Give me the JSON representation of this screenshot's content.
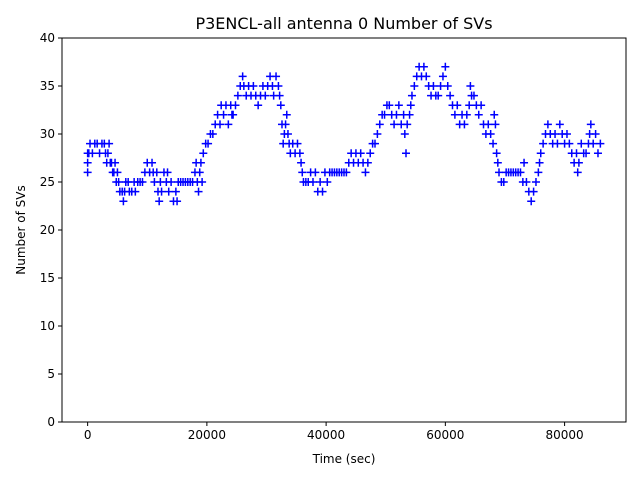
{
  "chart_data": {
    "type": "scatter",
    "title": "P3ENCL-all antenna 0 Number of SVs",
    "xlabel": "Time (sec)",
    "ylabel": "Number of SVs",
    "xlim": [
      -4300,
      90300
    ],
    "ylim": [
      0,
      40
    ],
    "xticks": [
      0,
      20000,
      40000,
      60000,
      80000
    ],
    "yticks": [
      0,
      5,
      10,
      15,
      20,
      25,
      30,
      35,
      40
    ],
    "marker": "+",
    "color": "#0000ff",
    "grid": false,
    "series": [
      {
        "name": "antenna 0",
        "points": [
          [
            0,
            26
          ],
          [
            0,
            27
          ],
          [
            0,
            28
          ],
          [
            200,
            28
          ],
          [
            400,
            29
          ],
          [
            800,
            28
          ],
          [
            1200,
            29
          ],
          [
            1600,
            29
          ],
          [
            2000,
            28
          ],
          [
            2400,
            29
          ],
          [
            2800,
            29
          ],
          [
            3000,
            28
          ],
          [
            3200,
            27
          ],
          [
            3400,
            28
          ],
          [
            3600,
            29
          ],
          [
            3800,
            27
          ],
          [
            4000,
            27
          ],
          [
            4200,
            26
          ],
          [
            4400,
            26
          ],
          [
            4600,
            27
          ],
          [
            4800,
            25
          ],
          [
            5000,
            26
          ],
          [
            5200,
            25
          ],
          [
            5400,
            24
          ],
          [
            5800,
            24
          ],
          [
            6000,
            23
          ],
          [
            6200,
            24
          ],
          [
            6400,
            25
          ],
          [
            6800,
            25
          ],
          [
            7000,
            24
          ],
          [
            7400,
            24
          ],
          [
            7800,
            25
          ],
          [
            8000,
            24
          ],
          [
            8400,
            25
          ],
          [
            8800,
            25
          ],
          [
            9200,
            25
          ],
          [
            9600,
            26
          ],
          [
            10000,
            27
          ],
          [
            10400,
            26
          ],
          [
            10800,
            27
          ],
          [
            11000,
            26
          ],
          [
            11200,
            25
          ],
          [
            11600,
            26
          ],
          [
            11800,
            24
          ],
          [
            12000,
            23
          ],
          [
            12200,
            25
          ],
          [
            12400,
            24
          ],
          [
            12800,
            26
          ],
          [
            13200,
            25
          ],
          [
            13400,
            26
          ],
          [
            13600,
            24
          ],
          [
            14000,
            25
          ],
          [
            14400,
            23
          ],
          [
            14800,
            24
          ],
          [
            15000,
            23
          ],
          [
            15200,
            25
          ],
          [
            15600,
            25
          ],
          [
            16000,
            25
          ],
          [
            16400,
            25
          ],
          [
            16800,
            25
          ],
          [
            17200,
            25
          ],
          [
            17600,
            25
          ],
          [
            18000,
            26
          ],
          [
            18200,
            27
          ],
          [
            18400,
            25
          ],
          [
            18600,
            24
          ],
          [
            18800,
            26
          ],
          [
            19000,
            27
          ],
          [
            19200,
            25
          ],
          [
            19400,
            28
          ],
          [
            19800,
            29
          ],
          [
            20200,
            29
          ],
          [
            20600,
            30
          ],
          [
            21000,
            30
          ],
          [
            21400,
            31
          ],
          [
            21800,
            32
          ],
          [
            22200,
            31
          ],
          [
            22400,
            33
          ],
          [
            22800,
            32
          ],
          [
            23200,
            33
          ],
          [
            23600,
            31
          ],
          [
            24000,
            33
          ],
          [
            24200,
            32
          ],
          [
            24400,
            32
          ],
          [
            24800,
            33
          ],
          [
            25200,
            34
          ],
          [
            25600,
            35
          ],
          [
            26000,
            36
          ],
          [
            26200,
            35
          ],
          [
            26600,
            34
          ],
          [
            27000,
            35
          ],
          [
            27400,
            34
          ],
          [
            27800,
            35
          ],
          [
            28200,
            34
          ],
          [
            28600,
            33
          ],
          [
            29000,
            34
          ],
          [
            29400,
            35
          ],
          [
            29800,
            34
          ],
          [
            30200,
            35
          ],
          [
            30600,
            36
          ],
          [
            31000,
            35
          ],
          [
            31200,
            34
          ],
          [
            31600,
            36
          ],
          [
            32000,
            35
          ],
          [
            32200,
            34
          ],
          [
            32400,
            33
          ],
          [
            32600,
            31
          ],
          [
            32800,
            29
          ],
          [
            33000,
            30
          ],
          [
            33200,
            31
          ],
          [
            33400,
            32
          ],
          [
            33600,
            30
          ],
          [
            33800,
            29
          ],
          [
            34000,
            28
          ],
          [
            34400,
            29
          ],
          [
            34800,
            28
          ],
          [
            35200,
            29
          ],
          [
            35600,
            28
          ],
          [
            35800,
            27
          ],
          [
            36000,
            26
          ],
          [
            36200,
            25
          ],
          [
            36600,
            25
          ],
          [
            37000,
            25
          ],
          [
            37400,
            26
          ],
          [
            37800,
            25
          ],
          [
            38200,
            26
          ],
          [
            38600,
            24
          ],
          [
            39000,
            25
          ],
          [
            39400,
            24
          ],
          [
            39800,
            26
          ],
          [
            40200,
            25
          ],
          [
            40600,
            26
          ],
          [
            41000,
            26
          ],
          [
            41400,
            26
          ],
          [
            41800,
            26
          ],
          [
            42200,
            26
          ],
          [
            42600,
            26
          ],
          [
            43000,
            26
          ],
          [
            43400,
            26
          ],
          [
            43800,
            27
          ],
          [
            44200,
            28
          ],
          [
            44600,
            27
          ],
          [
            45000,
            28
          ],
          [
            45400,
            27
          ],
          [
            45800,
            28
          ],
          [
            46200,
            27
          ],
          [
            46600,
            26
          ],
          [
            47000,
            27
          ],
          [
            47400,
            28
          ],
          [
            47800,
            29
          ],
          [
            48200,
            29
          ],
          [
            48600,
            30
          ],
          [
            49000,
            31
          ],
          [
            49400,
            32
          ],
          [
            49800,
            32
          ],
          [
            50200,
            33
          ],
          [
            50600,
            33
          ],
          [
            51000,
            32
          ],
          [
            51400,
            31
          ],
          [
            51800,
            32
          ],
          [
            52200,
            33
          ],
          [
            52600,
            31
          ],
          [
            53000,
            32
          ],
          [
            53200,
            30
          ],
          [
            53400,
            28
          ],
          [
            53600,
            31
          ],
          [
            54000,
            32
          ],
          [
            54200,
            33
          ],
          [
            54400,
            34
          ],
          [
            54800,
            35
          ],
          [
            55200,
            36
          ],
          [
            55600,
            37
          ],
          [
            56000,
            36
          ],
          [
            56400,
            37
          ],
          [
            56800,
            36
          ],
          [
            57200,
            35
          ],
          [
            57600,
            34
          ],
          [
            58000,
            35
          ],
          [
            58400,
            34
          ],
          [
            58800,
            34
          ],
          [
            59200,
            35
          ],
          [
            59600,
            36
          ],
          [
            60000,
            37
          ],
          [
            60400,
            35
          ],
          [
            60800,
            34
          ],
          [
            61200,
            33
          ],
          [
            61600,
            32
          ],
          [
            62000,
            33
          ],
          [
            62400,
            31
          ],
          [
            62800,
            32
          ],
          [
            63200,
            31
          ],
          [
            63600,
            32
          ],
          [
            64000,
            33
          ],
          [
            64200,
            35
          ],
          [
            64400,
            34
          ],
          [
            64800,
            34
          ],
          [
            65200,
            33
          ],
          [
            65600,
            32
          ],
          [
            66000,
            33
          ],
          [
            66400,
            31
          ],
          [
            66800,
            30
          ],
          [
            67200,
            31
          ],
          [
            67600,
            30
          ],
          [
            68000,
            29
          ],
          [
            68200,
            32
          ],
          [
            68400,
            31
          ],
          [
            68600,
            28
          ],
          [
            68800,
            27
          ],
          [
            69000,
            26
          ],
          [
            69400,
            25
          ],
          [
            69800,
            25
          ],
          [
            70200,
            26
          ],
          [
            70600,
            26
          ],
          [
            71000,
            26
          ],
          [
            71400,
            26
          ],
          [
            71800,
            26
          ],
          [
            72200,
            26
          ],
          [
            72600,
            26
          ],
          [
            73000,
            25
          ],
          [
            73200,
            27
          ],
          [
            73600,
            25
          ],
          [
            74000,
            24
          ],
          [
            74400,
            23
          ],
          [
            74800,
            24
          ],
          [
            75200,
            25
          ],
          [
            75600,
            26
          ],
          [
            75800,
            27
          ],
          [
            76000,
            28
          ],
          [
            76400,
            29
          ],
          [
            76800,
            30
          ],
          [
            77200,
            31
          ],
          [
            77600,
            30
          ],
          [
            78000,
            29
          ],
          [
            78400,
            30
          ],
          [
            78800,
            29
          ],
          [
            79200,
            31
          ],
          [
            79600,
            30
          ],
          [
            80000,
            29
          ],
          [
            80400,
            30
          ],
          [
            80800,
            29
          ],
          [
            81200,
            28
          ],
          [
            81600,
            27
          ],
          [
            82000,
            28
          ],
          [
            82200,
            26
          ],
          [
            82400,
            27
          ],
          [
            82800,
            29
          ],
          [
            83200,
            28
          ],
          [
            83600,
            28
          ],
          [
            84000,
            29
          ],
          [
            84200,
            30
          ],
          [
            84400,
            31
          ],
          [
            84800,
            29
          ],
          [
            85200,
            30
          ],
          [
            85600,
            28
          ],
          [
            86000,
            29
          ]
        ]
      }
    ]
  }
}
